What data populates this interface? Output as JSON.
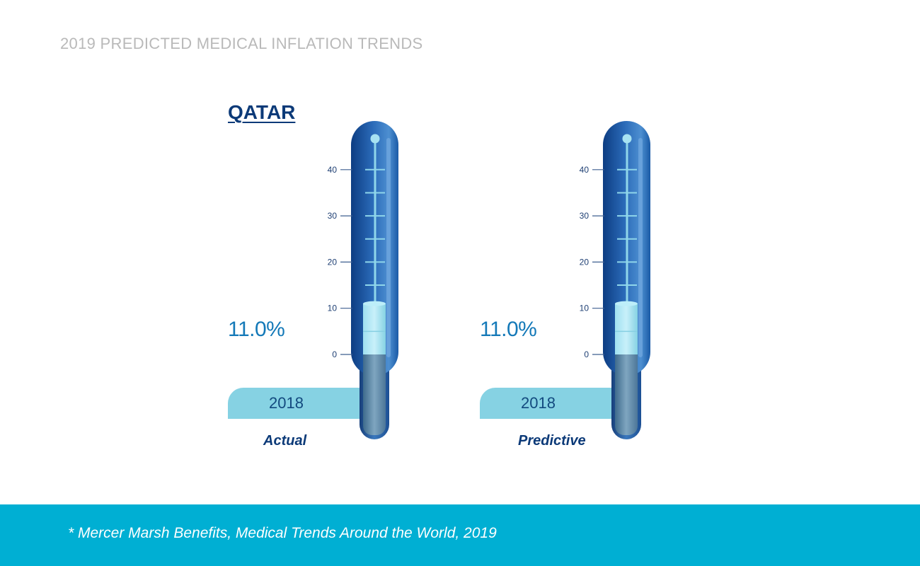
{
  "header": {
    "title": "2019 PREDICTED MEDICAL INFLATION TRENDS"
  },
  "chart_data": {
    "type": "bar",
    "title": "QATAR",
    "y_ticks": [
      "0",
      "10",
      "20",
      "30",
      "40"
    ],
    "ylim": [
      0,
      50
    ],
    "categories": [
      "Actual",
      "Predictive"
    ],
    "values": [
      11.0,
      11.0
    ],
    "value_labels": [
      "11.0%",
      "11.0%"
    ],
    "year_labels": [
      "2018",
      "2018"
    ]
  },
  "footer": {
    "source": "* Mercer Marsh Benefits, Medical Trends Around the World, 2019"
  },
  "colors": {
    "brand_blue": "#0c3a78",
    "accent_blue": "#1479b8",
    "tab_light_blue": "#86d2e3",
    "footer_cyan": "#00afd3"
  }
}
